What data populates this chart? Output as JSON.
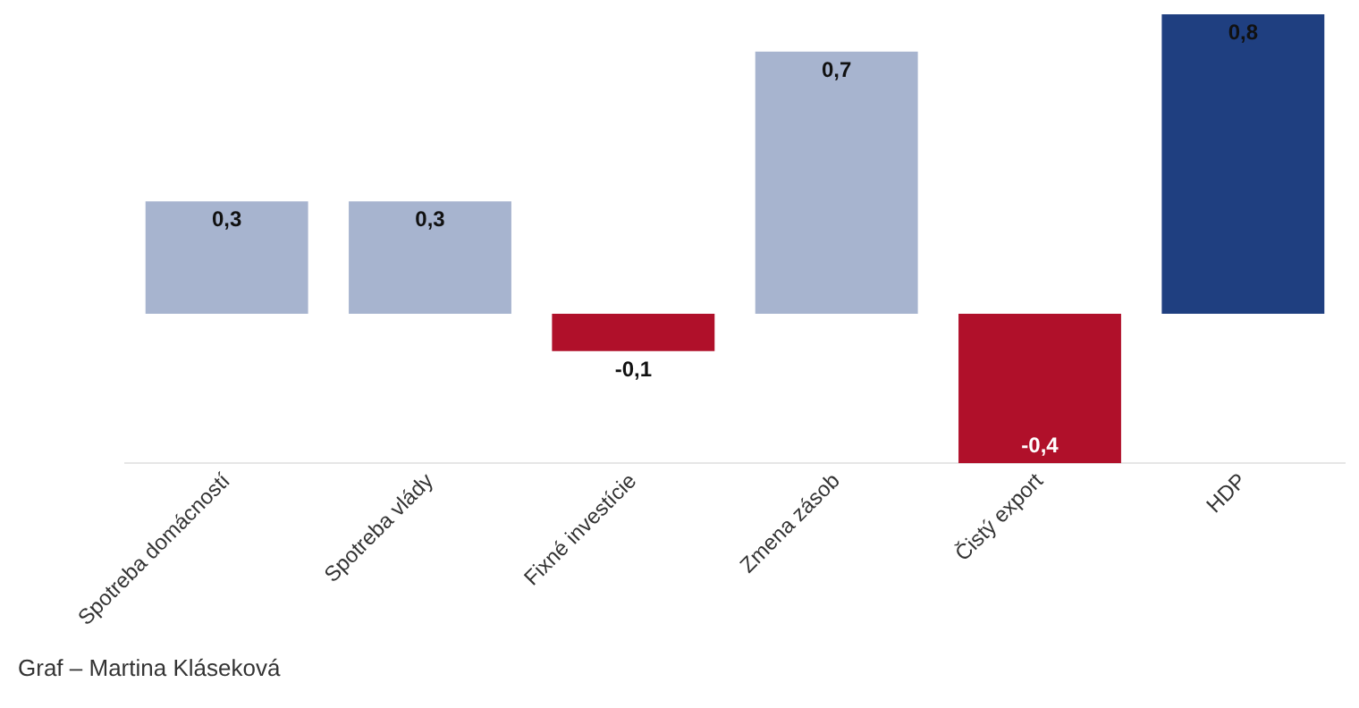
{
  "chart_data": {
    "type": "bar",
    "categories": [
      "Spotreba domácností",
      "Spotreba vlády",
      "Fixné investície",
      "Zmena zásob",
      "Čistý export",
      "HDP"
    ],
    "values": [
      0.3,
      0.3,
      -0.1,
      0.7,
      -0.4,
      0.8
    ],
    "colors": [
      "#a7b4cf",
      "#a7b4cf",
      "#b0102a",
      "#a7b4cf",
      "#b0102a",
      "#1f3f80"
    ],
    "value_labels": [
      "0,3",
      "0,3",
      "-0,1",
      "0,7",
      "-0,4",
      "0,8"
    ],
    "annotations": [
      "Graf – Martina Kláseková"
    ],
    "legend": false,
    "grid": false
  }
}
